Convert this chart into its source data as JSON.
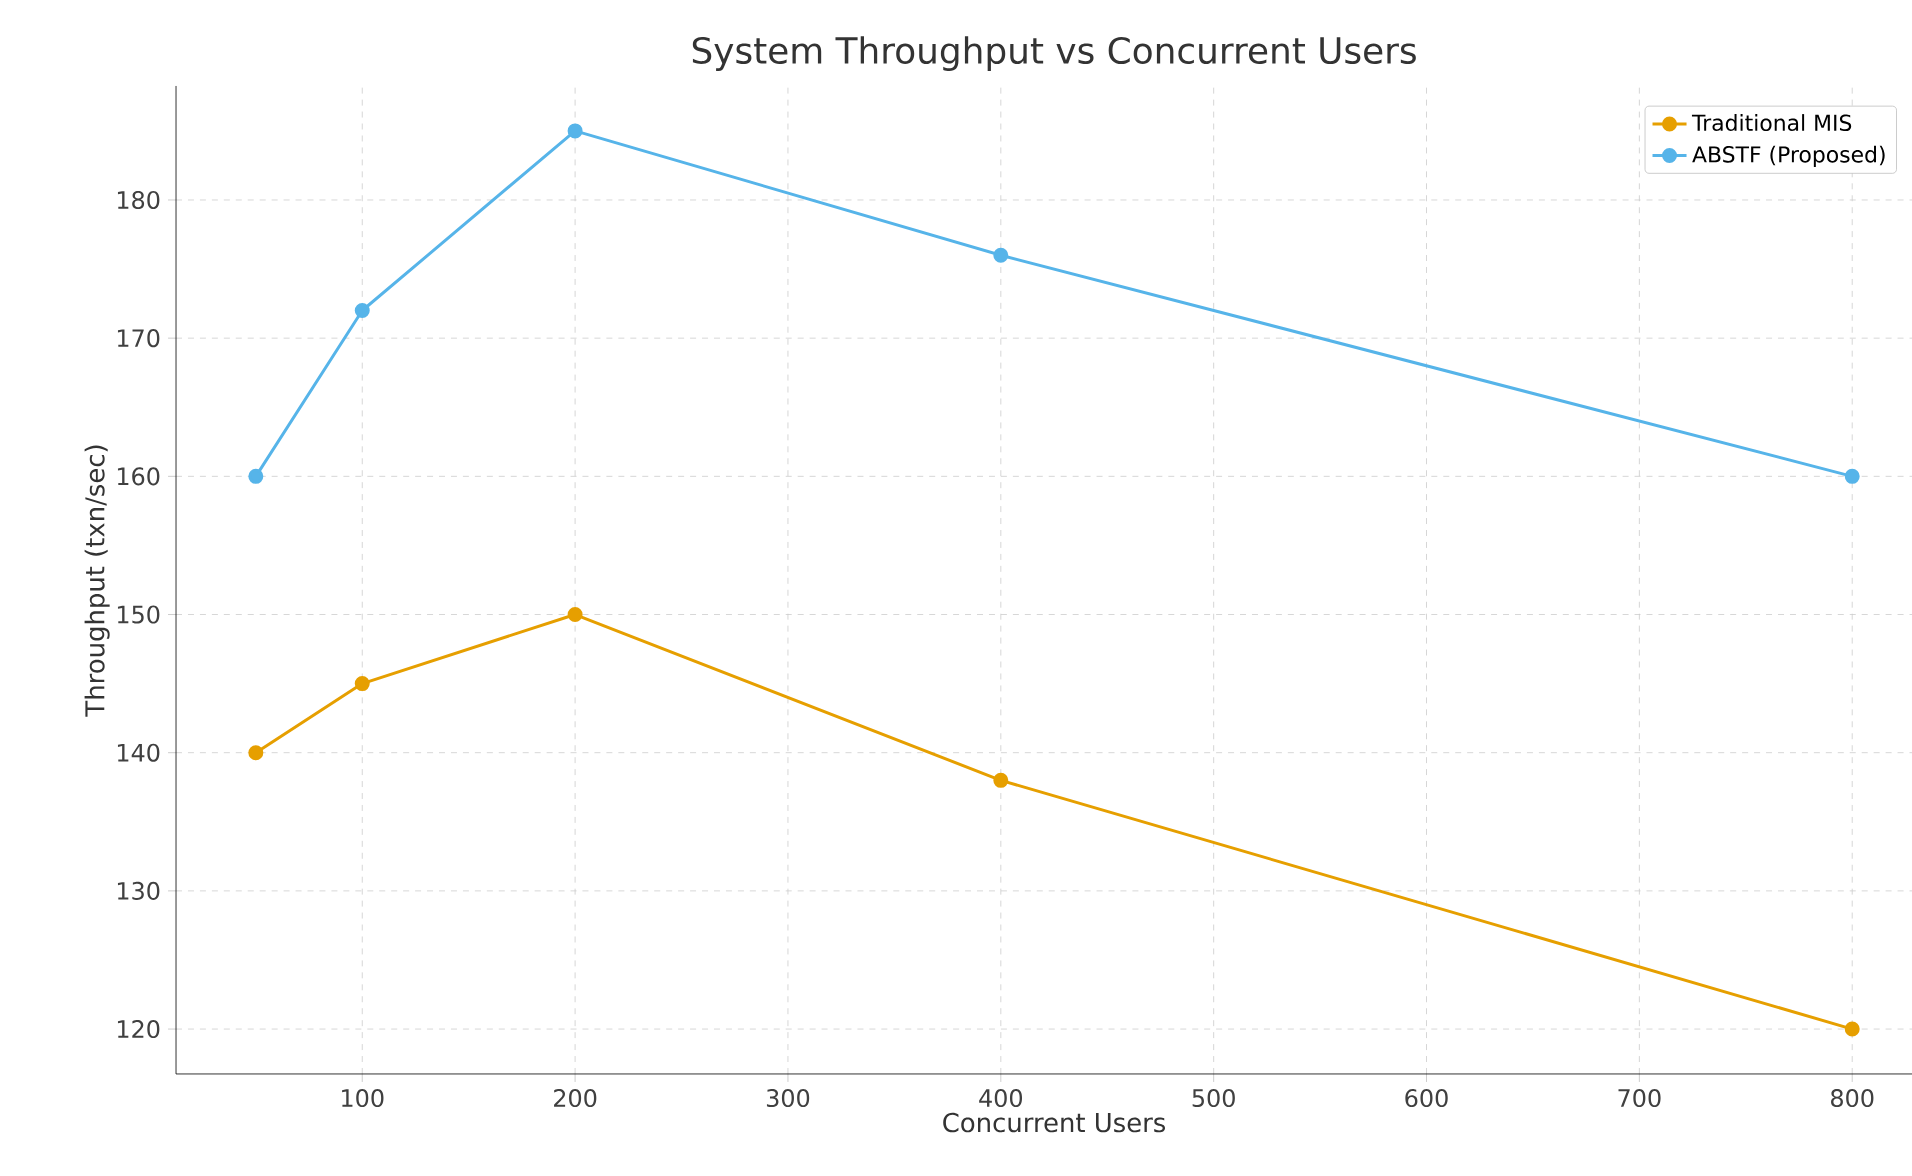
{
  "chart_data": {
    "type": "line",
    "title": "System Throughput vs Concurrent Users",
    "xlabel": "Concurrent Users",
    "ylabel": "Throughput (txn/sec)",
    "x": [
      50,
      100,
      200,
      400,
      800
    ],
    "series": [
      {
        "name": "Traditional MIS",
        "color": "#e69f00",
        "values": [
          140,
          145,
          150,
          138,
          120
        ]
      },
      {
        "name": "ABSTF (Proposed)",
        "color": "#56b4e9",
        "values": [
          160,
          172,
          185,
          176,
          160
        ]
      }
    ],
    "xlim": [
      12.5,
      837.5
    ],
    "ylim": [
      116.75,
      188.25
    ],
    "xticks": [
      100,
      200,
      300,
      400,
      500,
      600,
      700,
      800
    ],
    "yticks": [
      120,
      130,
      140,
      150,
      160,
      170,
      180
    ],
    "grid": true,
    "legend": "top right",
    "marker": "circle",
    "line_style": "solid"
  }
}
